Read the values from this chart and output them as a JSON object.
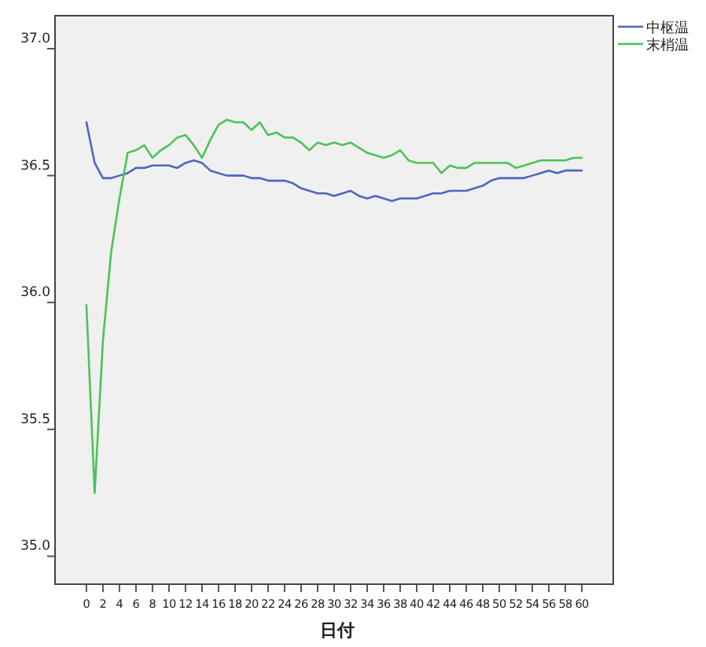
{
  "chart_data": {
    "type": "line",
    "xlabel": "日付",
    "x": [
      0,
      1,
      2,
      3,
      4,
      5,
      6,
      7,
      8,
      9,
      10,
      11,
      12,
      13,
      14,
      15,
      16,
      17,
      18,
      19,
      20,
      21,
      22,
      23,
      24,
      25,
      26,
      27,
      28,
      29,
      30,
      31,
      32,
      33,
      34,
      35,
      36,
      37,
      38,
      39,
      40,
      41,
      42,
      43,
      44,
      45,
      46,
      47,
      48,
      49,
      50,
      51,
      52,
      53,
      54,
      55,
      56,
      57,
      58,
      59,
      60
    ],
    "series": [
      {
        "name": "中枢温",
        "color": "#5066c0",
        "values": [
          36.71,
          36.55,
          36.49,
          36.49,
          36.5,
          36.51,
          36.53,
          36.53,
          36.54,
          36.54,
          36.54,
          36.53,
          36.55,
          36.56,
          36.55,
          36.52,
          36.51,
          36.5,
          36.5,
          36.5,
          36.49,
          36.49,
          36.48,
          36.48,
          36.48,
          36.47,
          36.45,
          36.44,
          36.43,
          36.43,
          36.42,
          36.43,
          36.44,
          36.42,
          36.41,
          36.42,
          36.41,
          36.4,
          36.41,
          36.41,
          36.41,
          36.42,
          36.43,
          36.43,
          36.44,
          36.44,
          36.44,
          36.45,
          36.46,
          36.48,
          36.49,
          36.49,
          36.49,
          36.49,
          36.5,
          36.51,
          36.52,
          36.51,
          36.52,
          36.52,
          36.52
        ]
      },
      {
        "name": "末梢温",
        "color": "#4cc35a",
        "values": [
          35.99,
          35.25,
          35.85,
          36.2,
          36.41,
          36.59,
          36.6,
          36.62,
          36.57,
          36.6,
          36.62,
          36.65,
          36.66,
          36.62,
          36.57,
          36.64,
          36.7,
          36.72,
          36.71,
          36.71,
          36.68,
          36.71,
          36.66,
          36.67,
          36.65,
          36.65,
          36.63,
          36.6,
          36.63,
          36.62,
          36.63,
          36.62,
          36.63,
          36.61,
          36.59,
          36.58,
          36.57,
          36.58,
          36.6,
          36.56,
          36.55,
          36.55,
          36.55,
          36.51,
          36.54,
          36.53,
          36.53,
          36.55,
          36.55,
          36.55,
          36.55,
          36.55,
          36.53,
          36.54,
          36.55,
          36.56,
          36.56,
          36.56,
          36.56,
          36.57,
          36.57
        ]
      }
    ],
    "xlim": [
      -3.8,
      63.8
    ],
    "ylim": [
      34.89,
      37.13
    ],
    "xticks": [
      0,
      2,
      4,
      6,
      8,
      10,
      12,
      14,
      16,
      18,
      20,
      22,
      24,
      26,
      28,
      30,
      32,
      34,
      36,
      38,
      40,
      42,
      44,
      46,
      48,
      50,
      52,
      54,
      56,
      58,
      60
    ],
    "yticks": [
      {
        "value": 35,
        "label": "35.0"
      },
      {
        "value": 35.5,
        "label": "35.5"
      },
      {
        "value": 36,
        "label": "36.0"
      },
      {
        "value": 36.5,
        "label": "36.5"
      },
      {
        "value": 37,
        "label": "37.0"
      }
    ],
    "grid": false,
    "legend": "top right",
    "marker": "none",
    "line_style": "solid"
  }
}
